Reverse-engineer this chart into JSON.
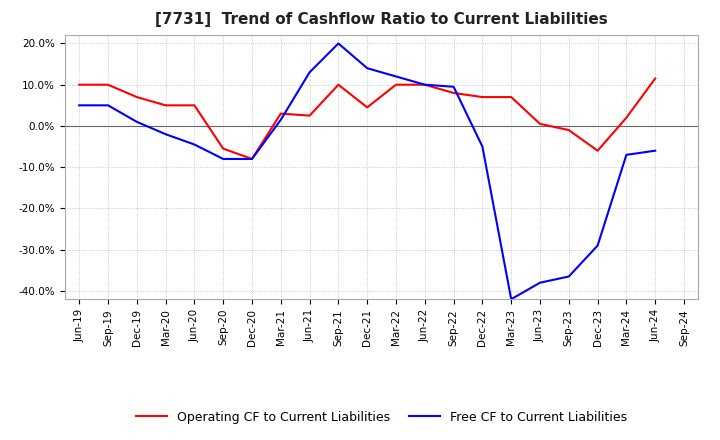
{
  "title": "[7731]  Trend of Cashflow Ratio to Current Liabilities",
  "x_labels": [
    "Jun-19",
    "Sep-19",
    "Dec-19",
    "Mar-20",
    "Jun-20",
    "Sep-20",
    "Dec-20",
    "Mar-21",
    "Jun-21",
    "Sep-21",
    "Dec-21",
    "Mar-22",
    "Jun-22",
    "Sep-22",
    "Dec-22",
    "Mar-23",
    "Jun-23",
    "Sep-23",
    "Dec-23",
    "Mar-24",
    "Jun-24",
    "Sep-24"
  ],
  "operating_cf": [
    10.0,
    10.0,
    7.0,
    5.0,
    5.0,
    -5.5,
    -8.0,
    3.0,
    2.5,
    10.0,
    4.5,
    10.0,
    10.0,
    8.0,
    7.0,
    7.0,
    0.5,
    -1.0,
    -6.0,
    2.0,
    11.5,
    null
  ],
  "free_cf": [
    5.0,
    5.0,
    1.0,
    -2.0,
    -4.5,
    -8.0,
    -8.0,
    1.5,
    13.0,
    20.0,
    14.0,
    12.0,
    10.0,
    9.5,
    -5.0,
    -42.0,
    -38.0,
    -36.5,
    -29.0,
    -7.0,
    -6.0,
    null
  ],
  "ylim": [
    -42,
    22
  ],
  "yticks": [
    -40.0,
    -30.0,
    -20.0,
    -10.0,
    0.0,
    10.0,
    20.0
  ],
  "operating_color": "#ff0000",
  "free_color": "#0000ff",
  "background_color": "#ffffff",
  "grid_color": "#bbbbbb",
  "legend_operating": "Operating CF to Current Liabilities",
  "legend_free": "Free CF to Current Liabilities",
  "title_fontsize": 11,
  "tick_fontsize": 7.5,
  "legend_fontsize": 9,
  "linewidth": 1.5
}
